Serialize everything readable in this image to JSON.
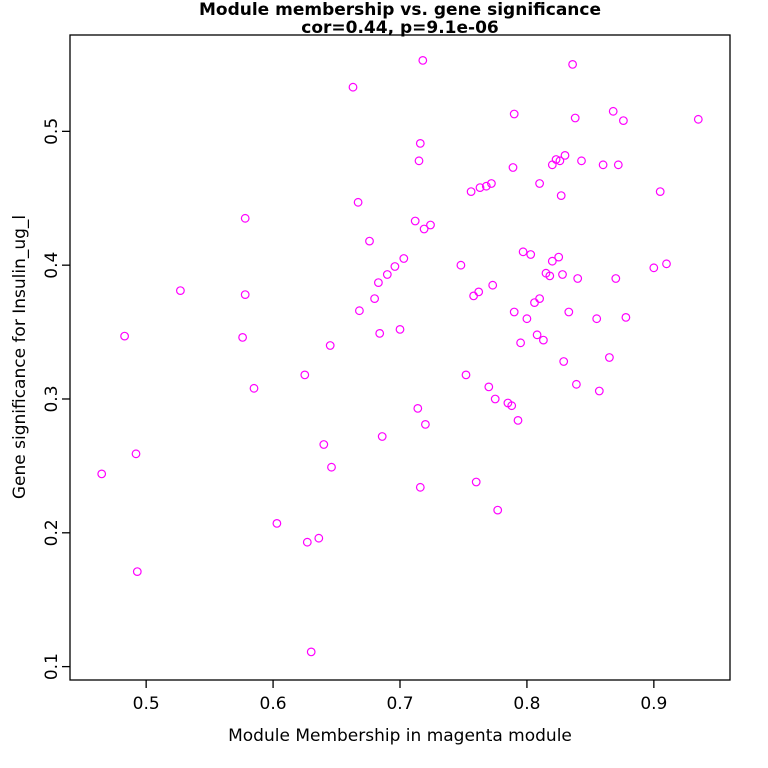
{
  "chart_data": {
    "type": "scatter",
    "title": "Module membership vs. gene significance",
    "subtitle": "cor=0.44, p=9.1e-06",
    "xlabel": "Module Membership in magenta module",
    "ylabel": "Gene significance for Insulin_ug_l",
    "xlim": [
      0.44,
      0.96
    ],
    "ylim": [
      0.09,
      0.572
    ],
    "x_ticks": [
      0.5,
      0.6,
      0.7,
      0.8,
      0.9
    ],
    "x_tick_labels": [
      "0.5",
      "0.6",
      "0.7",
      "0.8",
      "0.9"
    ],
    "y_ticks": [
      0.1,
      0.2,
      0.3,
      0.4,
      0.5
    ],
    "y_tick_labels": [
      "0.1",
      "0.2",
      "0.3",
      "0.4",
      "0.5"
    ],
    "point_color": "#FF00FF",
    "axis_color": "#000000",
    "grid": false,
    "legend": null,
    "points": [
      [
        0.465,
        0.244
      ],
      [
        0.483,
        0.347
      ],
      [
        0.492,
        0.259
      ],
      [
        0.493,
        0.171
      ],
      [
        0.527,
        0.381
      ],
      [
        0.578,
        0.435
      ],
      [
        0.578,
        0.378
      ],
      [
        0.576,
        0.346
      ],
      [
        0.585,
        0.308
      ],
      [
        0.603,
        0.207
      ],
      [
        0.625,
        0.318
      ],
      [
        0.627,
        0.193
      ],
      [
        0.636,
        0.196
      ],
      [
        0.63,
        0.111
      ],
      [
        0.64,
        0.266
      ],
      [
        0.646,
        0.249
      ],
      [
        0.645,
        0.34
      ],
      [
        0.663,
        0.533
      ],
      [
        0.667,
        0.447
      ],
      [
        0.668,
        0.366
      ],
      [
        0.676,
        0.418
      ],
      [
        0.68,
        0.375
      ],
      [
        0.683,
        0.387
      ],
      [
        0.684,
        0.349
      ],
      [
        0.686,
        0.272
      ],
      [
        0.69,
        0.393
      ],
      [
        0.696,
        0.399
      ],
      [
        0.7,
        0.352
      ],
      [
        0.703,
        0.405
      ],
      [
        0.712,
        0.433
      ],
      [
        0.715,
        0.478
      ],
      [
        0.716,
        0.491
      ],
      [
        0.718,
        0.553
      ],
      [
        0.719,
        0.427
      ],
      [
        0.724,
        0.43
      ],
      [
        0.714,
        0.293
      ],
      [
        0.72,
        0.281
      ],
      [
        0.716,
        0.234
      ],
      [
        0.748,
        0.4
      ],
      [
        0.752,
        0.318
      ],
      [
        0.756,
        0.455
      ],
      [
        0.76,
        0.238
      ],
      [
        0.763,
        0.458
      ],
      [
        0.768,
        0.459
      ],
      [
        0.77,
        0.309
      ],
      [
        0.772,
        0.461
      ],
      [
        0.758,
        0.377
      ],
      [
        0.762,
        0.38
      ],
      [
        0.773,
        0.385
      ],
      [
        0.775,
        0.3
      ],
      [
        0.777,
        0.217
      ],
      [
        0.785,
        0.297
      ],
      [
        0.788,
        0.295
      ],
      [
        0.789,
        0.473
      ],
      [
        0.79,
        0.513
      ],
      [
        0.79,
        0.365
      ],
      [
        0.793,
        0.284
      ],
      [
        0.795,
        0.342
      ],
      [
        0.797,
        0.41
      ],
      [
        0.8,
        0.36
      ],
      [
        0.803,
        0.408
      ],
      [
        0.806,
        0.372
      ],
      [
        0.808,
        0.348
      ],
      [
        0.81,
        0.461
      ],
      [
        0.81,
        0.375
      ],
      [
        0.813,
        0.344
      ],
      [
        0.815,
        0.394
      ],
      [
        0.818,
        0.392
      ],
      [
        0.82,
        0.403
      ],
      [
        0.82,
        0.475
      ],
      [
        0.823,
        0.479
      ],
      [
        0.825,
        0.406
      ],
      [
        0.826,
        0.478
      ],
      [
        0.828,
        0.393
      ],
      [
        0.829,
        0.328
      ],
      [
        0.83,
        0.482
      ],
      [
        0.827,
        0.452
      ],
      [
        0.833,
        0.365
      ],
      [
        0.836,
        0.55
      ],
      [
        0.838,
        0.51
      ],
      [
        0.839,
        0.311
      ],
      [
        0.84,
        0.39
      ],
      [
        0.843,
        0.478
      ],
      [
        0.855,
        0.36
      ],
      [
        0.857,
        0.306
      ],
      [
        0.86,
        0.475
      ],
      [
        0.865,
        0.331
      ],
      [
        0.868,
        0.515
      ],
      [
        0.87,
        0.39
      ],
      [
        0.872,
        0.475
      ],
      [
        0.876,
        0.508
      ],
      [
        0.878,
        0.361
      ],
      [
        0.905,
        0.455
      ],
      [
        0.9,
        0.398
      ],
      [
        0.91,
        0.401
      ],
      [
        0.935,
        0.509
      ]
    ]
  }
}
